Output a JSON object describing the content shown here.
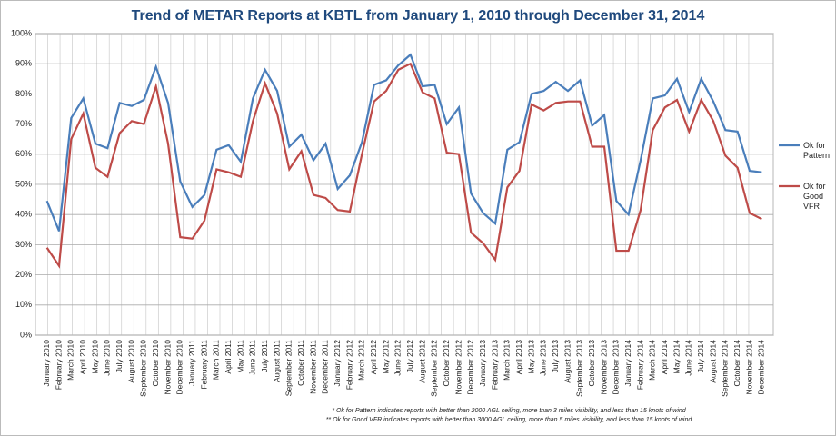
{
  "chart_data": {
    "type": "line",
    "title": "Trend of METAR Reports at KBTL from January 1, 2010 through December 31, 2014",
    "categories": [
      "January 2010",
      "February 2010",
      "March 2010",
      "April 2010",
      "May 2010",
      "June 2010",
      "July 2010",
      "August 2010",
      "September 2010",
      "October 2010",
      "November 2010",
      "December 2010",
      "January 2011",
      "February 2011",
      "March 2011",
      "April 2011",
      "May 2011",
      "June 2011",
      "July 2011",
      "August 2011",
      "September 2011",
      "October 2011",
      "November 2011",
      "December 2011",
      "January 2012",
      "February 2012",
      "March 2012",
      "April 2012",
      "May 2012",
      "June 2012",
      "July 2012",
      "August 2012",
      "September 2012",
      "October 2012",
      "November 2012",
      "December 2012",
      "January 2013",
      "February 2013",
      "March 2013",
      "April 2013",
      "May 2013",
      "June 2013",
      "July 2013",
      "August 2013",
      "September 2013",
      "October 2013",
      "November 2013",
      "December 2013",
      "January 2014",
      "February 2014",
      "March 2014",
      "April 2014",
      "May 2014",
      "June 2014",
      "July 2014",
      "August 2014",
      "September 2014",
      "October 2014",
      "November 2014",
      "December 2014"
    ],
    "series": [
      {
        "name": "Ok for Pattern",
        "color": "#4a7ebb",
        "values": [
          44.5,
          34.5,
          72,
          78.5,
          63.5,
          62,
          77,
          76,
          78,
          89,
          77,
          51,
          42.5,
          46.5,
          61.5,
          63,
          57.5,
          78.5,
          88,
          81,
          62.5,
          66.5,
          58,
          63.5,
          48.5,
          53,
          64,
          83,
          84.5,
          89.5,
          93,
          82.5,
          83,
          70,
          75.5,
          47,
          40.5,
          37,
          61.5,
          64,
          80,
          81,
          84,
          81,
          84.5,
          69.5,
          73,
          44.5,
          40,
          58,
          78.5,
          79.5,
          85,
          74,
          85,
          77.5,
          68,
          67.5,
          54.5,
          54
        ]
      },
      {
        "name": "Ok for Good VFR",
        "color": "#be4b48",
        "values": [
          29,
          23,
          65,
          73.5,
          55.5,
          52.5,
          67,
          71,
          70,
          82.5,
          63.5,
          32.5,
          32,
          38,
          55,
          54,
          52.5,
          71,
          83.5,
          73.5,
          55,
          61,
          46.5,
          45.5,
          41.5,
          41,
          60,
          77.5,
          81,
          88,
          90,
          80.5,
          78.5,
          60.5,
          60,
          34,
          30.5,
          25,
          49,
          54.5,
          76.5,
          74.5,
          77,
          77.5,
          77.5,
          62.5,
          62.5,
          28,
          28,
          41.5,
          68,
          75.5,
          78,
          67.5,
          78,
          71,
          59.5,
          55.5,
          40.5,
          38.5
        ]
      }
    ],
    "ylim": [
      0,
      100
    ],
    "yticks": [
      {
        "value": 0,
        "label": "0%"
      },
      {
        "value": 10,
        "label": "10%"
      },
      {
        "value": 20,
        "label": "20%"
      },
      {
        "value": 30,
        "label": "30%"
      },
      {
        "value": 40,
        "label": "40%"
      },
      {
        "value": 50,
        "label": "50%"
      },
      {
        "value": 60,
        "label": "60%"
      },
      {
        "value": 70,
        "label": "70%"
      },
      {
        "value": 80,
        "label": "80%"
      },
      {
        "value": 90,
        "label": "90%"
      },
      {
        "value": 100,
        "label": "100%"
      }
    ],
    "grid": true,
    "legend": "right",
    "footnotes": [
      "* Ok for Pattern indicates reports with better than 2000 AGL ceiling, more than 3 miles visibility, and less than 15 knots of wind",
      "** Ok for Good VFR indicates reports with better than 3000 AGL ceiling, more than 5 miles visibility, and less than 15 knots of wind"
    ]
  }
}
